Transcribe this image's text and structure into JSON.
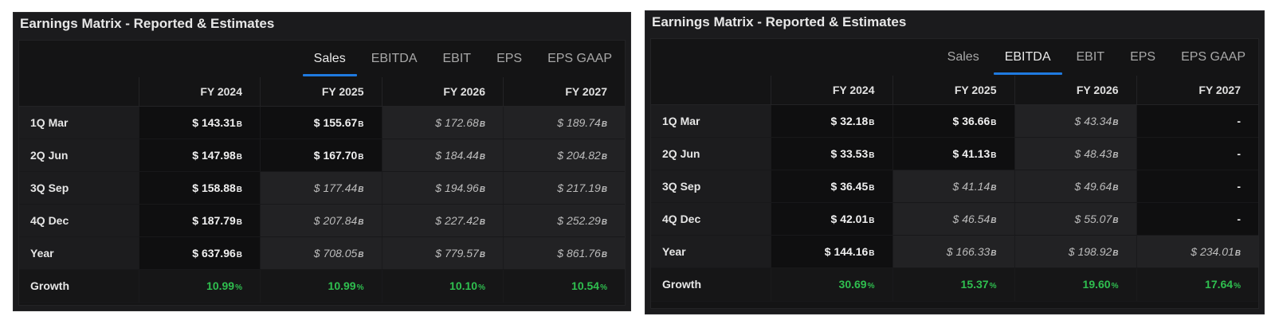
{
  "panels": [
    {
      "title": "Earnings Matrix - Reported & Estimates",
      "tabs": [
        "Sales",
        "EBITDA",
        "EBIT",
        "EPS",
        "EPS GAAP"
      ],
      "active_tab": "Sales",
      "columns": [
        "FY 2024",
        "FY 2025",
        "FY 2026",
        "FY 2027"
      ],
      "rows": [
        {
          "label": "1Q Mar",
          "values": [
            "$ 143.31",
            "$ 155.67",
            "$ 172.68",
            "$ 189.74"
          ],
          "units": [
            "B",
            "B",
            "B",
            "B"
          ],
          "types": [
            "rep",
            "rep",
            "est",
            "est"
          ]
        },
        {
          "label": "2Q Jun",
          "values": [
            "$ 147.98",
            "$ 167.70",
            "$ 184.44",
            "$ 204.82"
          ],
          "units": [
            "B",
            "B",
            "B",
            "B"
          ],
          "types": [
            "rep",
            "rep",
            "est",
            "est"
          ]
        },
        {
          "label": "3Q Sep",
          "values": [
            "$ 158.88",
            "$ 177.44",
            "$ 194.96",
            "$ 217.19"
          ],
          "units": [
            "B",
            "B",
            "B",
            "B"
          ],
          "types": [
            "rep",
            "est",
            "est",
            "est"
          ]
        },
        {
          "label": "4Q Dec",
          "values": [
            "$ 187.79",
            "$ 207.84",
            "$ 227.42",
            "$ 252.29"
          ],
          "units": [
            "B",
            "B",
            "B",
            "B"
          ],
          "types": [
            "rep",
            "est",
            "est",
            "est"
          ]
        },
        {
          "label": "Year",
          "values": [
            "$ 637.96",
            "$ 708.05",
            "$ 779.57",
            "$ 861.76"
          ],
          "units": [
            "B",
            "B",
            "B",
            "B"
          ],
          "types": [
            "rep",
            "est",
            "est",
            "est"
          ]
        },
        {
          "label": "Growth",
          "values": [
            "10.99",
            "10.99",
            "10.10",
            "10.54"
          ],
          "units": [
            "%",
            "%",
            "%",
            "%"
          ],
          "types": [
            "gr",
            "gr",
            "gr",
            "gr"
          ]
        }
      ]
    },
    {
      "title": "Earnings Matrix - Reported & Estimates",
      "tabs": [
        "Sales",
        "EBITDA",
        "EBIT",
        "EPS",
        "EPS GAAP"
      ],
      "active_tab": "EBITDA",
      "columns": [
        "FY 2024",
        "FY 2025",
        "FY 2026",
        "FY 2027"
      ],
      "rows": [
        {
          "label": "1Q Mar",
          "values": [
            "$ 32.18",
            "$ 36.66",
            "$ 43.34",
            "-"
          ],
          "units": [
            "B",
            "B",
            "B",
            ""
          ],
          "types": [
            "rep",
            "rep",
            "est",
            "dash"
          ]
        },
        {
          "label": "2Q Jun",
          "values": [
            "$ 33.53",
            "$ 41.13",
            "$ 48.43",
            "-"
          ],
          "units": [
            "B",
            "B",
            "B",
            ""
          ],
          "types": [
            "rep",
            "rep",
            "est",
            "dash"
          ]
        },
        {
          "label": "3Q Sep",
          "values": [
            "$ 36.45",
            "$ 41.14",
            "$ 49.64",
            "-"
          ],
          "units": [
            "B",
            "B",
            "B",
            ""
          ],
          "types": [
            "rep",
            "est",
            "est",
            "dash"
          ]
        },
        {
          "label": "4Q Dec",
          "values": [
            "$ 42.01",
            "$ 46.54",
            "$ 55.07",
            "-"
          ],
          "units": [
            "B",
            "B",
            "B",
            ""
          ],
          "types": [
            "rep",
            "est",
            "est",
            "dash"
          ]
        },
        {
          "label": "Year",
          "values": [
            "$ 144.16",
            "$ 166.33",
            "$ 198.92",
            "$ 234.01"
          ],
          "units": [
            "B",
            "B",
            "B",
            "B"
          ],
          "types": [
            "rep",
            "est",
            "est",
            "est"
          ]
        },
        {
          "label": "Growth",
          "values": [
            "30.69",
            "15.37",
            "19.60",
            "17.64"
          ],
          "units": [
            "%",
            "%",
            "%",
            "%"
          ],
          "types": [
            "gr",
            "gr",
            "gr",
            "gr"
          ]
        }
      ]
    }
  ],
  "colors": {
    "panel_bg": "#1b1b1d",
    "reported_cell_bg": "#0f0f10",
    "estimate_cell_bg": "#222224",
    "growth_text": "#2fbf4f",
    "active_tab_underline": "#1f7ae0"
  }
}
